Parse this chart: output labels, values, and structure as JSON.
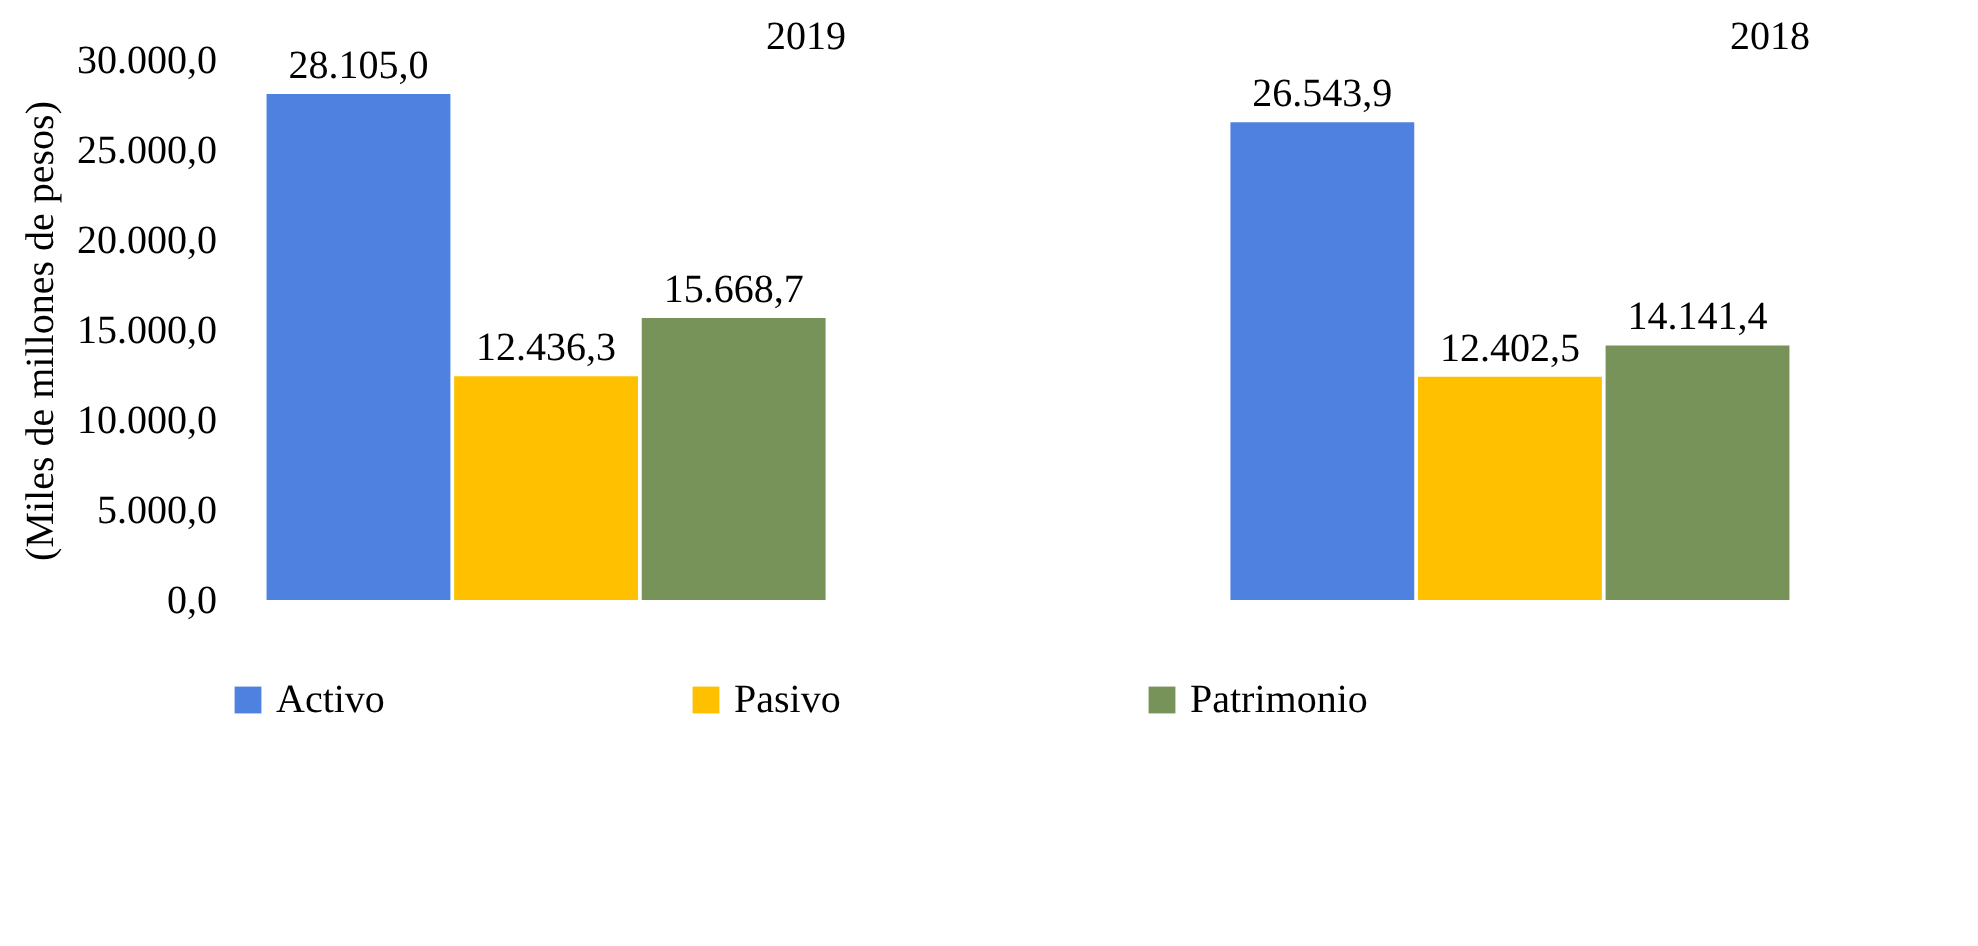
{
  "chart_data": {
    "type": "bar",
    "ylabel": "(Miles de millones de pesos)",
    "categories": [
      "2019",
      "2018"
    ],
    "series": [
      {
        "name": "Activo",
        "color": "#4f81e0",
        "values": [
          28105.0,
          26543.9
        ],
        "value_labels": [
          "28.105,0",
          "26.543,9"
        ]
      },
      {
        "name": "Pasivo",
        "color": "#ffc000",
        "values": [
          12436.3,
          12402.5
        ],
        "value_labels": [
          "12.436,3",
          "12.402,5"
        ]
      },
      {
        "name": "Patrimonio",
        "color": "#77935a",
        "values": [
          15668.7,
          14141.4
        ],
        "value_labels": [
          "15.668,7",
          "14.141,4"
        ]
      }
    ],
    "ylim": [
      0,
      30000
    ],
    "yticks": [
      {
        "value": 0,
        "label": "0,0"
      },
      {
        "value": 5000,
        "label": "5.000,0"
      },
      {
        "value": 10000,
        "label": "10.000,0"
      },
      {
        "value": 15000,
        "label": "15.000,0"
      },
      {
        "value": 20000,
        "label": "20.000,0"
      },
      {
        "value": 25000,
        "label": "25.000,0"
      },
      {
        "value": 30000,
        "label": "30.000,0"
      }
    ],
    "legend": "bottom"
  }
}
